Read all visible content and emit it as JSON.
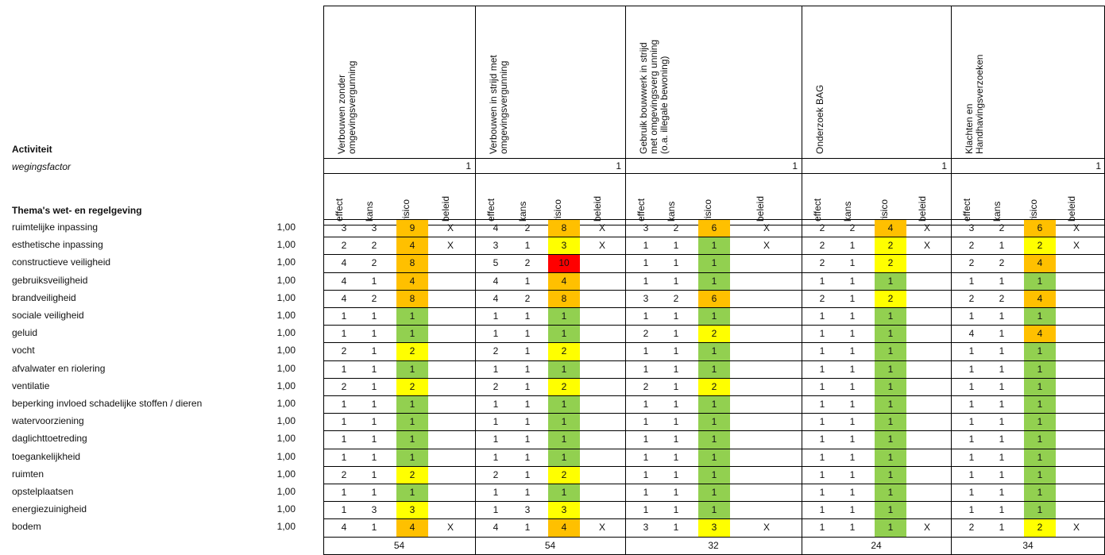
{
  "header": {
    "activity_label": "Activiteit",
    "weighting_label": "wegingsfactor",
    "themes_label": "Thema's wet- en regelgeving"
  },
  "colors": {
    "green": "#92d050",
    "yellow": "#ffff00",
    "orange": "#ffc000",
    "red": "#ff0000"
  },
  "sub_labels": [
    "effect",
    "kans",
    "risico",
    "beleid"
  ],
  "activities": [
    {
      "title": "Verbouwen zonder\nomgevingsvergunning",
      "weight": "1",
      "total": "54",
      "rows": [
        [
          "3",
          "3",
          "9",
          "X"
        ],
        [
          "2",
          "2",
          "4",
          "X"
        ],
        [
          "4",
          "2",
          "8",
          ""
        ],
        [
          "4",
          "1",
          "4",
          ""
        ],
        [
          "4",
          "2",
          "8",
          ""
        ],
        [
          "1",
          "1",
          "1",
          ""
        ],
        [
          "1",
          "1",
          "1",
          ""
        ],
        [
          "2",
          "1",
          "2",
          ""
        ],
        [
          "1",
          "1",
          "1",
          ""
        ],
        [
          "2",
          "1",
          "2",
          ""
        ],
        [
          "1",
          "1",
          "1",
          ""
        ],
        [
          "1",
          "1",
          "1",
          ""
        ],
        [
          "1",
          "1",
          "1",
          ""
        ],
        [
          "1",
          "1",
          "1",
          ""
        ],
        [
          "2",
          "1",
          "2",
          ""
        ],
        [
          "1",
          "1",
          "1",
          ""
        ],
        [
          "1",
          "3",
          "3",
          ""
        ],
        [
          "4",
          "1",
          "4",
          "X"
        ]
      ]
    },
    {
      "title": "Verbouwen in strijd met\nomgevingsvergunning",
      "weight": "1",
      "total": "54",
      "rows": [
        [
          "4",
          "2",
          "8",
          "X"
        ],
        [
          "3",
          "1",
          "3",
          "X"
        ],
        [
          "5",
          "2",
          "10",
          ""
        ],
        [
          "4",
          "1",
          "4",
          ""
        ],
        [
          "4",
          "2",
          "8",
          ""
        ],
        [
          "1",
          "1",
          "1",
          ""
        ],
        [
          "1",
          "1",
          "1",
          ""
        ],
        [
          "2",
          "1",
          "2",
          ""
        ],
        [
          "1",
          "1",
          "1",
          ""
        ],
        [
          "2",
          "1",
          "2",
          ""
        ],
        [
          "1",
          "1",
          "1",
          ""
        ],
        [
          "1",
          "1",
          "1",
          ""
        ],
        [
          "1",
          "1",
          "1",
          ""
        ],
        [
          "1",
          "1",
          "1",
          ""
        ],
        [
          "2",
          "1",
          "2",
          ""
        ],
        [
          "1",
          "1",
          "1",
          ""
        ],
        [
          "1",
          "3",
          "3",
          ""
        ],
        [
          "4",
          "1",
          "4",
          "X"
        ]
      ]
    },
    {
      "title": "Gebruik bouwwerk in strijd\nmet omgevingsverg unning\n(o.a. illegale bewoning)",
      "weight": "1",
      "total": "32",
      "rows": [
        [
          "3",
          "2",
          "6",
          "X"
        ],
        [
          "1",
          "1",
          "1",
          "X"
        ],
        [
          "1",
          "1",
          "1",
          ""
        ],
        [
          "1",
          "1",
          "1",
          ""
        ],
        [
          "3",
          "2",
          "6",
          ""
        ],
        [
          "1",
          "1",
          "1",
          ""
        ],
        [
          "2",
          "1",
          "2",
          ""
        ],
        [
          "1",
          "1",
          "1",
          ""
        ],
        [
          "1",
          "1",
          "1",
          ""
        ],
        [
          "2",
          "1",
          "2",
          ""
        ],
        [
          "1",
          "1",
          "1",
          ""
        ],
        [
          "1",
          "1",
          "1",
          ""
        ],
        [
          "1",
          "1",
          "1",
          ""
        ],
        [
          "1",
          "1",
          "1",
          ""
        ],
        [
          "1",
          "1",
          "1",
          ""
        ],
        [
          "1",
          "1",
          "1",
          ""
        ],
        [
          "1",
          "1",
          "1",
          ""
        ],
        [
          "3",
          "1",
          "3",
          "X"
        ]
      ]
    },
    {
      "title": "Onderzoek BAG",
      "weight": "1",
      "total": "24",
      "rows": [
        [
          "2",
          "2",
          "4",
          "X"
        ],
        [
          "2",
          "1",
          "2",
          "X"
        ],
        [
          "2",
          "1",
          "2",
          ""
        ],
        [
          "1",
          "1",
          "1",
          ""
        ],
        [
          "2",
          "1",
          "2",
          ""
        ],
        [
          "1",
          "1",
          "1",
          ""
        ],
        [
          "1",
          "1",
          "1",
          ""
        ],
        [
          "1",
          "1",
          "1",
          ""
        ],
        [
          "1",
          "1",
          "1",
          ""
        ],
        [
          "1",
          "1",
          "1",
          ""
        ],
        [
          "1",
          "1",
          "1",
          ""
        ],
        [
          "1",
          "1",
          "1",
          ""
        ],
        [
          "1",
          "1",
          "1",
          ""
        ],
        [
          "1",
          "1",
          "1",
          ""
        ],
        [
          "1",
          "1",
          "1",
          ""
        ],
        [
          "1",
          "1",
          "1",
          ""
        ],
        [
          "1",
          "1",
          "1",
          ""
        ],
        [
          "1",
          "1",
          "1",
          "X"
        ]
      ]
    },
    {
      "title": "Klachten en\nHandhavingsverzoeken",
      "weight": "1",
      "total": "34",
      "rows": [
        [
          "3",
          "2",
          "6",
          "X"
        ],
        [
          "2",
          "1",
          "2",
          "X"
        ],
        [
          "2",
          "2",
          "4",
          ""
        ],
        [
          "1",
          "1",
          "1",
          ""
        ],
        [
          "2",
          "2",
          "4",
          ""
        ],
        [
          "1",
          "1",
          "1",
          ""
        ],
        [
          "4",
          "1",
          "4",
          ""
        ],
        [
          "1",
          "1",
          "1",
          ""
        ],
        [
          "1",
          "1",
          "1",
          ""
        ],
        [
          "1",
          "1",
          "1",
          ""
        ],
        [
          "1",
          "1",
          "1",
          ""
        ],
        [
          "1",
          "1",
          "1",
          ""
        ],
        [
          "1",
          "1",
          "1",
          ""
        ],
        [
          "1",
          "1",
          "1",
          ""
        ],
        [
          "1",
          "1",
          "1",
          ""
        ],
        [
          "1",
          "1",
          "1",
          ""
        ],
        [
          "1",
          "1",
          "1",
          ""
        ],
        [
          "2",
          "1",
          "2",
          "X"
        ]
      ]
    }
  ],
  "themes": [
    {
      "name": "ruimtelijke inpassing",
      "weight": "1,00"
    },
    {
      "name": "esthetische inpassing",
      "weight": "1,00"
    },
    {
      "name": "constructieve veiligheid",
      "weight": "1,00"
    },
    {
      "name": "gebruiksveiligheid",
      "weight": "1,00"
    },
    {
      "name": "brandveiligheid",
      "weight": "1,00"
    },
    {
      "name": "sociale veiligheid",
      "weight": "1,00"
    },
    {
      "name": "geluid",
      "weight": "1,00"
    },
    {
      "name": "vocht",
      "weight": "1,00"
    },
    {
      "name": "afvalwater en riolering",
      "weight": "1,00"
    },
    {
      "name": "ventilatie",
      "weight": "1,00"
    },
    {
      "name": "beperking invloed schadelijke stoffen / dieren",
      "weight": "1,00"
    },
    {
      "name": "watervoorziening",
      "weight": "1,00"
    },
    {
      "name": "daglichttoetreding",
      "weight": "1,00"
    },
    {
      "name": "toegankelijkheid",
      "weight": "1,00"
    },
    {
      "name": "ruimten",
      "weight": "1,00"
    },
    {
      "name": "opstelplaatsen",
      "weight": "1,00"
    },
    {
      "name": "energiezuinigheid",
      "weight": "1,00"
    },
    {
      "name": "bodem",
      "weight": "1,00"
    }
  ]
}
